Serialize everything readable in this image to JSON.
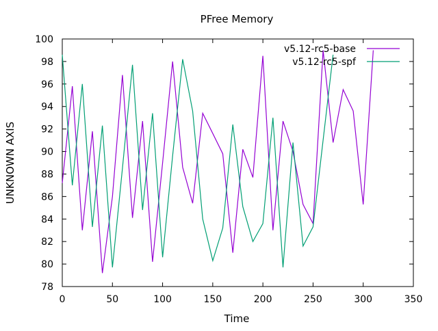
{
  "chart_data": {
    "type": "line",
    "title": "PFree Memory",
    "xlabel": "Time",
    "ylabel": "UNKNOWN AXIS",
    "xlim": [
      0,
      350
    ],
    "ylim": [
      78,
      100
    ],
    "xticks": [
      0,
      50,
      100,
      150,
      200,
      250,
      300,
      350
    ],
    "yticks": [
      78,
      80,
      82,
      84,
      86,
      88,
      90,
      92,
      94,
      96,
      98,
      100
    ],
    "grid": false,
    "legend_position": "top-right",
    "series": [
      {
        "name": "v5.12-rc5-base",
        "color": "#9400d3",
        "x": [
          0,
          10,
          20,
          30,
          40,
          50,
          60,
          70,
          80,
          90,
          100,
          110,
          120,
          130,
          140,
          150,
          160,
          170,
          180,
          190,
          200,
          210,
          220,
          230,
          240,
          250,
          260,
          270,
          280,
          290,
          300,
          310
        ],
        "y": [
          87.2,
          95.8,
          83.0,
          91.8,
          79.2,
          86.0,
          96.8,
          84.1,
          92.7,
          80.2,
          89.0,
          98.0,
          88.6,
          85.4,
          93.4,
          91.6,
          89.8,
          81.0,
          90.2,
          87.7,
          98.5,
          83.0,
          92.7,
          90.0,
          85.3,
          83.6,
          99.0,
          90.8,
          95.5,
          93.6,
          85.3,
          99.0
        ]
      },
      {
        "name": "v5.12-rc5-spf",
        "color": "#009e73",
        "x": [
          0,
          10,
          20,
          30,
          40,
          50,
          60,
          70,
          80,
          90,
          100,
          110,
          120,
          130,
          140,
          150,
          160,
          170,
          180,
          190,
          200,
          210,
          220,
          230,
          240,
          250,
          260,
          270
        ],
        "y": [
          98.6,
          87.0,
          96.0,
          83.3,
          92.3,
          79.7,
          88.5,
          97.7,
          84.8,
          93.4,
          80.6,
          89.6,
          98.2,
          93.6,
          84.0,
          80.3,
          83.2,
          92.4,
          85.1,
          82.0,
          83.6,
          93.0,
          79.7,
          90.8,
          81.6,
          83.3,
          91.0,
          98.6
        ]
      }
    ]
  }
}
